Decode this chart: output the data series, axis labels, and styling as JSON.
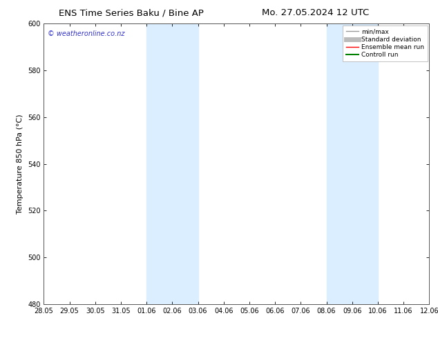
{
  "title_left": "ENS Time Series Baku / Bine AP",
  "title_right": "Mo. 27.05.2024 12 UTC",
  "ylabel": "Temperature 850 hPa (°C)",
  "ylim": [
    480,
    600
  ],
  "yticks": [
    480,
    500,
    520,
    540,
    560,
    580,
    600
  ],
  "x_tick_labels": [
    "28.05",
    "29.05",
    "30.05",
    "31.05",
    "01.06",
    "02.06",
    "03.06",
    "04.06",
    "05.06",
    "06.06",
    "07.06",
    "08.06",
    "09.06",
    "10.06",
    "11.06",
    "12.06"
  ],
  "x_tick_positions": [
    0,
    1,
    2,
    3,
    4,
    5,
    6,
    7,
    8,
    9,
    10,
    11,
    12,
    13,
    14,
    15
  ],
  "shade_bands": [
    {
      "x_start": 4,
      "x_end": 6,
      "color": "#daeeff"
    },
    {
      "x_start": 11,
      "x_end": 13,
      "color": "#daeeff"
    }
  ],
  "watermark_text": "© weatheronline.co.nz",
  "watermark_color": "#3333cc",
  "background_color": "#ffffff",
  "plot_bg_color": "#ffffff",
  "border_color": "#555555",
  "legend_entries": [
    {
      "label": "min/max",
      "color": "#999999",
      "lw": 1.0,
      "ls": "-"
    },
    {
      "label": "Standard deviation",
      "color": "#bbbbbb",
      "lw": 5,
      "ls": "-"
    },
    {
      "label": "Ensemble mean run",
      "color": "#ff0000",
      "lw": 1.0,
      "ls": "-"
    },
    {
      "label": "Controll run",
      "color": "#008000",
      "lw": 1.5,
      "ls": "-"
    }
  ],
  "title_fontsize": 9.5,
  "tick_fontsize": 7,
  "ylabel_fontsize": 8,
  "watermark_fontsize": 7,
  "legend_fontsize": 6.5
}
